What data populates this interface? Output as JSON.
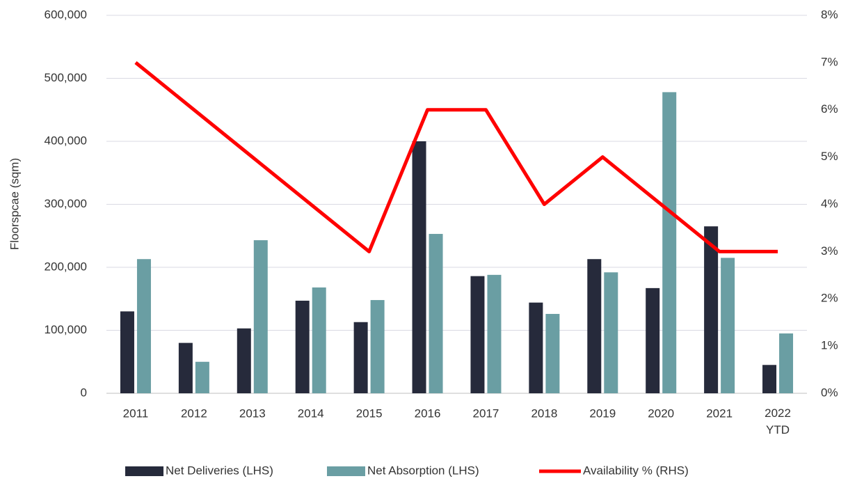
{
  "chart_data": {
    "type": "bar_line",
    "y_label": "Floorspcae (sqm)",
    "categories": [
      "2011",
      "2012",
      "2013",
      "2014",
      "2015",
      "2016",
      "2017",
      "2018",
      "2019",
      "2020",
      "2021",
      "2022 YTD"
    ],
    "series": [
      {
        "name": "Net Deliveries (LHS)",
        "type": "bar",
        "color": "#262a3b",
        "values": [
          130000,
          80000,
          103000,
          147000,
          113000,
          400000,
          186000,
          144000,
          213000,
          167000,
          265000,
          45000
        ]
      },
      {
        "name": "Net Absorption (LHS)",
        "type": "bar",
        "color": "#6a9ea3",
        "values": [
          213000,
          50000,
          243000,
          168000,
          148000,
          253000,
          188000,
          126000,
          192000,
          478000,
          215000,
          95000
        ]
      },
      {
        "name": "Availability % (RHS)",
        "type": "line",
        "axis": "y2",
        "color": "#ff0000",
        "values": [
          7,
          6,
          5,
          4,
          3,
          6,
          6,
          4,
          5,
          4,
          3,
          3
        ]
      }
    ],
    "ylim": [
      0,
      600000
    ],
    "yticks": [
      0,
      {
        "value": 100000,
        "label": "100,000"
      },
      {
        "value": 200000,
        "label": "200,000"
      },
      {
        "value": 300000,
        "label": "300,000"
      },
      {
        "value": 400000,
        "label": "400,000"
      },
      {
        "value": 500000,
        "label": "500,000"
      },
      {
        "value": 600000,
        "label": "600,000"
      }
    ],
    "y2lim": [
      0,
      8
    ],
    "y2ticks": [
      {
        "value": 0,
        "label": "0%"
      },
      {
        "value": 1,
        "label": "1%"
      },
      {
        "value": 2,
        "label": "2%"
      },
      {
        "value": 3,
        "label": "3%"
      },
      {
        "value": 4,
        "label": "4%"
      },
      {
        "value": 5,
        "label": "5%"
      },
      {
        "value": 6,
        "label": "6%"
      },
      {
        "value": 7,
        "label": "7%"
      },
      {
        "value": 8,
        "label": "8%"
      }
    ],
    "grid": true,
    "legend": "bottom"
  }
}
